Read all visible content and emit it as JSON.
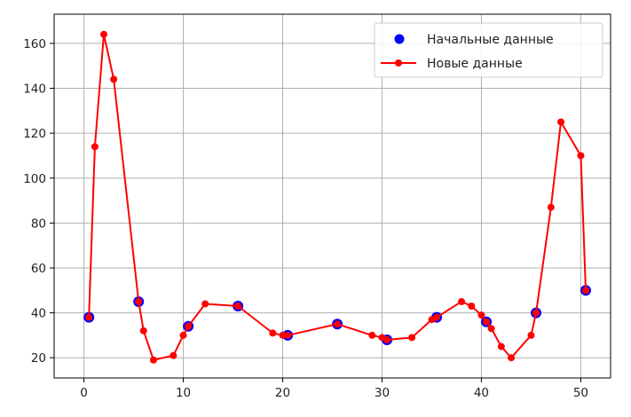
{
  "chart_data": {
    "type": "scatter",
    "title": "",
    "xlabel": "",
    "ylabel": "",
    "xlim": [
      -3,
      53
    ],
    "ylim": [
      11,
      173
    ],
    "xticks": [
      0,
      10,
      20,
      30,
      40,
      50
    ],
    "yticks": [
      20,
      40,
      60,
      80,
      100,
      120,
      140,
      160
    ],
    "grid": true,
    "legend_position": "top-right",
    "series": [
      {
        "name": "Начальные данные",
        "kind": "markers",
        "color": "#0000ff",
        "x": [
          0.5,
          5.5,
          10.5,
          15.5,
          20.5,
          25.5,
          30.5,
          35.5,
          40.5,
          45.5,
          50.5
        ],
        "y": [
          38,
          45,
          34,
          43,
          30,
          35,
          28,
          38,
          36,
          40,
          50
        ]
      },
      {
        "name": "Новые данные",
        "kind": "line-markers",
        "color": "#ff0000",
        "x": [
          0.5,
          1.1,
          2.0,
          3.0,
          5.5,
          6.0,
          7.0,
          9.0,
          10.0,
          10.5,
          12.2,
          15.5,
          19.0,
          20.0,
          20.5,
          25.5,
          29.0,
          30.0,
          30.5,
          33.0,
          35.0,
          35.5,
          38.0,
          39.0,
          40.0,
          40.5,
          41.0,
          42.0,
          43.0,
          45.0,
          45.5,
          47.0,
          48.0,
          50.0,
          50.5
        ],
        "y": [
          38,
          114,
          164,
          144,
          45,
          32,
          19,
          21,
          30,
          34,
          44,
          43,
          31,
          30,
          30,
          35,
          30,
          29,
          28,
          29,
          37,
          38,
          45,
          43,
          39,
          36,
          33,
          25,
          20,
          30,
          40,
          87,
          125,
          110,
          50
        ]
      }
    ]
  }
}
